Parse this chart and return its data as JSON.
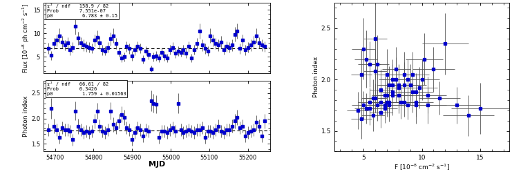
{
  "flux_mjd": [
    54683,
    54690,
    54697,
    54704,
    54711,
    54718,
    54725,
    54732,
    54739,
    54746,
    54753,
    54760,
    54767,
    54774,
    54781,
    54788,
    54795,
    54802,
    54809,
    54816,
    54823,
    54830,
    54837,
    54844,
    54851,
    54858,
    54865,
    54872,
    54879,
    54886,
    54893,
    54900,
    54907,
    54914,
    54921,
    54928,
    54935,
    54942,
    54949,
    54956,
    54963,
    54970,
    54977,
    54984,
    54991,
    54998,
    55005,
    55012,
    55019,
    55026,
    55033,
    55040,
    55047,
    55054,
    55061,
    55068,
    55075,
    55082,
    55089,
    55096,
    55103,
    55110,
    55117,
    55124,
    55131,
    55138,
    55145,
    55152,
    55159,
    55166,
    55173,
    55180,
    55187,
    55194,
    55201,
    55208,
    55215,
    55222,
    55229,
    55236,
    55243
  ],
  "flux_val": [
    6.8,
    5.3,
    7.8,
    8.5,
    9.5,
    8.2,
    7.5,
    8.0,
    6.5,
    7.0,
    11.5,
    9.0,
    8.0,
    7.5,
    7.2,
    7.0,
    6.8,
    8.5,
    9.2,
    8.0,
    6.5,
    6.3,
    7.0,
    8.8,
    9.5,
    7.8,
    6.0,
    4.8,
    5.0,
    7.2,
    6.8,
    5.2,
    6.5,
    7.2,
    6.8,
    4.5,
    6.3,
    5.5,
    2.5,
    5.0,
    5.2,
    4.8,
    6.0,
    5.2,
    4.8,
    6.5,
    7.0,
    5.8,
    6.2,
    6.0,
    6.5,
    5.8,
    7.2,
    4.8,
    6.5,
    7.8,
    10.5,
    7.5,
    6.8,
    6.2,
    9.5,
    8.5,
    7.8,
    7.5,
    8.2,
    6.5,
    7.2,
    7.0,
    7.5,
    9.8,
    10.5,
    6.8,
    8.5,
    6.5,
    7.0,
    7.5,
    8.2,
    9.5,
    8.0,
    7.5,
    7.2
  ],
  "flux_err": [
    1.2,
    1.0,
    1.2,
    1.3,
    1.5,
    1.2,
    1.1,
    1.2,
    1.1,
    1.1,
    1.8,
    1.4,
    1.2,
    1.2,
    1.1,
    1.1,
    1.0,
    1.3,
    1.4,
    1.3,
    1.1,
    1.0,
    1.1,
    1.4,
    1.5,
    1.2,
    1.0,
    0.9,
    1.0,
    1.1,
    1.1,
    1.0,
    1.1,
    1.1,
    1.0,
    0.9,
    1.0,
    1.0,
    0.7,
    1.0,
    1.0,
    0.9,
    1.0,
    1.0,
    0.9,
    1.0,
    1.1,
    1.0,
    1.0,
    1.0,
    1.0,
    1.0,
    1.1,
    0.9,
    1.0,
    1.2,
    1.6,
    1.2,
    1.1,
    1.0,
    1.5,
    1.3,
    1.2,
    1.2,
    1.3,
    1.0,
    1.1,
    1.1,
    1.2,
    1.5,
    1.6,
    1.1,
    1.3,
    1.1,
    1.1,
    1.2,
    1.3,
    1.5,
    1.2,
    1.2,
    1.1
  ],
  "flux_const": 6.783,
  "flux_ylabel": "Flux [10$^{-8}$ ph cm$^{-2}$ s$^{-1}$]",
  "flux_text_chi2": "χ² / ndf",
  "flux_text_chi2_val": "158.9 / 82",
  "flux_text_prob": "Prob",
  "flux_text_prob_val": "7.551e-07",
  "flux_text_p0": "p0",
  "flux_text_p0_val": "6.783 ± 0.15",
  "index_mjd": [
    54683,
    54690,
    54697,
    54704,
    54711,
    54718,
    54725,
    54732,
    54739,
    54746,
    54753,
    54760,
    54767,
    54774,
    54781,
    54788,
    54795,
    54802,
    54809,
    54816,
    54823,
    54830,
    54837,
    54844,
    54851,
    54858,
    54865,
    54872,
    54879,
    54886,
    54893,
    54900,
    54907,
    54914,
    54921,
    54928,
    54935,
    54942,
    54949,
    54956,
    54963,
    54970,
    54977,
    54984,
    54991,
    54998,
    55005,
    55012,
    55019,
    55026,
    55033,
    55040,
    55047,
    55054,
    55061,
    55068,
    55075,
    55082,
    55089,
    55096,
    55103,
    55110,
    55117,
    55124,
    55131,
    55138,
    55145,
    55152,
    55159,
    55166,
    55173,
    55180,
    55187,
    55194,
    55201,
    55208,
    55215,
    55222,
    55229,
    55236,
    55243
  ],
  "index_val": [
    1.78,
    2.2,
    1.85,
    1.78,
    1.62,
    1.82,
    1.78,
    1.78,
    1.75,
    1.58,
    2.15,
    1.85,
    1.78,
    1.72,
    1.75,
    1.72,
    1.75,
    1.95,
    2.15,
    1.85,
    1.75,
    1.72,
    1.78,
    2.15,
    1.88,
    1.82,
    1.95,
    2.08,
    2.02,
    1.82,
    1.78,
    1.58,
    1.72,
    1.82,
    1.78,
    1.65,
    1.78,
    1.75,
    2.35,
    2.3,
    2.28,
    1.62,
    1.75,
    1.75,
    1.72,
    1.78,
    1.82,
    1.75,
    2.3,
    1.78,
    1.72,
    1.75,
    1.78,
    1.75,
    1.72,
    1.78,
    1.78,
    1.82,
    1.62,
    1.75,
    1.75,
    1.72,
    1.78,
    1.85,
    1.75,
    1.72,
    1.78,
    1.78,
    1.85,
    1.95,
    2.02,
    1.82,
    1.85,
    1.65,
    1.72,
    1.75,
    1.78,
    1.92,
    1.85,
    1.65,
    1.95
  ],
  "index_err": [
    0.12,
    0.2,
    0.14,
    0.12,
    0.12,
    0.12,
    0.12,
    0.12,
    0.12,
    0.12,
    0.18,
    0.15,
    0.12,
    0.12,
    0.12,
    0.12,
    0.12,
    0.14,
    0.16,
    0.13,
    0.12,
    0.12,
    0.12,
    0.17,
    0.14,
    0.12,
    0.14,
    0.16,
    0.15,
    0.12,
    0.12,
    0.12,
    0.12,
    0.12,
    0.12,
    0.12,
    0.12,
    0.12,
    0.2,
    0.18,
    0.18,
    0.12,
    0.12,
    0.12,
    0.12,
    0.12,
    0.12,
    0.12,
    0.2,
    0.12,
    0.12,
    0.12,
    0.12,
    0.12,
    0.12,
    0.12,
    0.12,
    0.12,
    0.12,
    0.12,
    0.12,
    0.12,
    0.12,
    0.13,
    0.12,
    0.12,
    0.12,
    0.12,
    0.13,
    0.14,
    0.15,
    0.12,
    0.13,
    0.12,
    0.12,
    0.12,
    0.12,
    0.14,
    0.13,
    0.12,
    0.14
  ],
  "index_const": 1.759,
  "index_ylabel": "Photon index",
  "index_text_chi2": "χ² / ndf",
  "index_text_chi2_val": "66.61 / 82",
  "index_text_prob": "Prob",
  "index_text_prob_val": "0.3426",
  "index_text_p0": "p0",
  "index_text_p0_val": "1.759 + 0.01563",
  "scatter_flux": [
    4.5,
    5.0,
    5.2,
    4.8,
    5.5,
    5.8,
    6.0,
    6.2,
    5.5,
    6.5,
    6.8,
    5.2,
    6.0,
    7.0,
    6.5,
    7.2,
    7.0,
    7.5,
    7.8,
    6.8,
    7.5,
    8.0,
    7.2,
    8.5,
    8.0,
    8.8,
    8.5,
    9.0,
    9.5,
    9.2,
    8.8,
    9.8,
    10.0,
    10.5,
    9.5,
    11.0,
    11.5,
    10.2,
    12.0,
    13.0,
    14.0,
    15.0,
    7.5,
    6.2,
    5.8,
    6.5,
    7.8,
    8.2,
    5.0,
    6.0,
    7.5,
    8.5,
    9.5,
    7.0,
    5.5,
    4.8,
    6.8,
    7.2,
    8.0,
    9.2,
    10.5
  ],
  "scatter_flux_err": [
    0.9,
    1.0,
    1.0,
    0.9,
    1.0,
    1.0,
    1.0,
    1.0,
    1.0,
    1.0,
    1.1,
    1.0,
    1.0,
    1.1,
    1.0,
    1.1,
    1.1,
    1.2,
    1.2,
    1.1,
    1.2,
    1.2,
    1.1,
    1.3,
    1.2,
    1.4,
    1.3,
    1.4,
    1.5,
    1.4,
    1.3,
    1.5,
    1.5,
    1.6,
    1.5,
    1.8,
    1.8,
    1.6,
    2.0,
    2.0,
    2.2,
    2.5,
    1.2,
    1.0,
    1.0,
    1.0,
    1.2,
    1.3,
    1.0,
    1.0,
    1.2,
    1.3,
    1.5,
    1.1,
    1.0,
    0.9,
    1.1,
    1.1,
    1.2,
    1.4,
    1.6
  ],
  "scatter_index": [
    1.7,
    1.75,
    1.72,
    2.05,
    1.78,
    1.65,
    1.82,
    1.75,
    2.15,
    1.78,
    1.72,
    2.2,
    2.08,
    1.85,
    1.68,
    1.95,
    1.78,
    2.0,
    2.1,
    1.75,
    1.88,
    1.95,
    1.78,
    2.05,
    1.85,
    2.0,
    1.78,
    1.95,
    1.88,
    2.05,
    1.75,
    1.92,
    2.0,
    1.85,
    1.78,
    2.1,
    1.82,
    2.2,
    2.35,
    1.75,
    1.65,
    1.72,
    1.95,
    2.15,
    1.82,
    1.9,
    2.0,
    1.78,
    2.3,
    2.4,
    1.85,
    1.95,
    1.75,
    2.05,
    1.72,
    1.62,
    1.85,
    1.75,
    1.92,
    1.88,
    1.75
  ],
  "scatter_index_err": [
    0.18,
    0.14,
    0.15,
    0.25,
    0.14,
    0.15,
    0.14,
    0.15,
    0.22,
    0.14,
    0.14,
    0.28,
    0.22,
    0.18,
    0.15,
    0.18,
    0.14,
    0.2,
    0.22,
    0.14,
    0.18,
    0.2,
    0.14,
    0.22,
    0.18,
    0.2,
    0.14,
    0.2,
    0.18,
    0.22,
    0.14,
    0.2,
    0.2,
    0.18,
    0.14,
    0.22,
    0.16,
    0.25,
    0.3,
    0.18,
    0.2,
    0.25,
    0.2,
    0.28,
    0.18,
    0.2,
    0.22,
    0.16,
    0.3,
    0.4,
    0.2,
    0.22,
    0.18,
    0.25,
    0.16,
    0.2,
    0.18,
    0.16,
    0.22,
    0.2,
    0.18
  ],
  "marker_color": "#0000CC",
  "ecolor": "#555555",
  "marker_size": 2.5,
  "elinewidth": 0.6,
  "capsize": 0,
  "xlabel_time": "MJD",
  "xlabel_scatter": "F [10$^{-8}$ cm$^{-2}$ s$^{-1}$]",
  "xlim_time": [
    54670,
    55258
  ],
  "ylim_flux": [
    1.5,
    16.5
  ],
  "ylim_index": [
    1.35,
    2.75
  ],
  "xlim_scatter": [
    2.5,
    17.5
  ],
  "ylim_scatter": [
    1.3,
    2.75
  ],
  "xticks_scatter": [
    5,
    10,
    15
  ],
  "xticks_time": [
    54700,
    54800,
    54900,
    55000,
    55100,
    55200
  ],
  "flux_yticks": [
    5,
    10,
    15
  ],
  "index_yticks": [
    1.5,
    2.0,
    2.5
  ],
  "scatter_yticks": [
    1.5,
    2.0,
    2.5
  ],
  "bg_color": "#ffffff"
}
